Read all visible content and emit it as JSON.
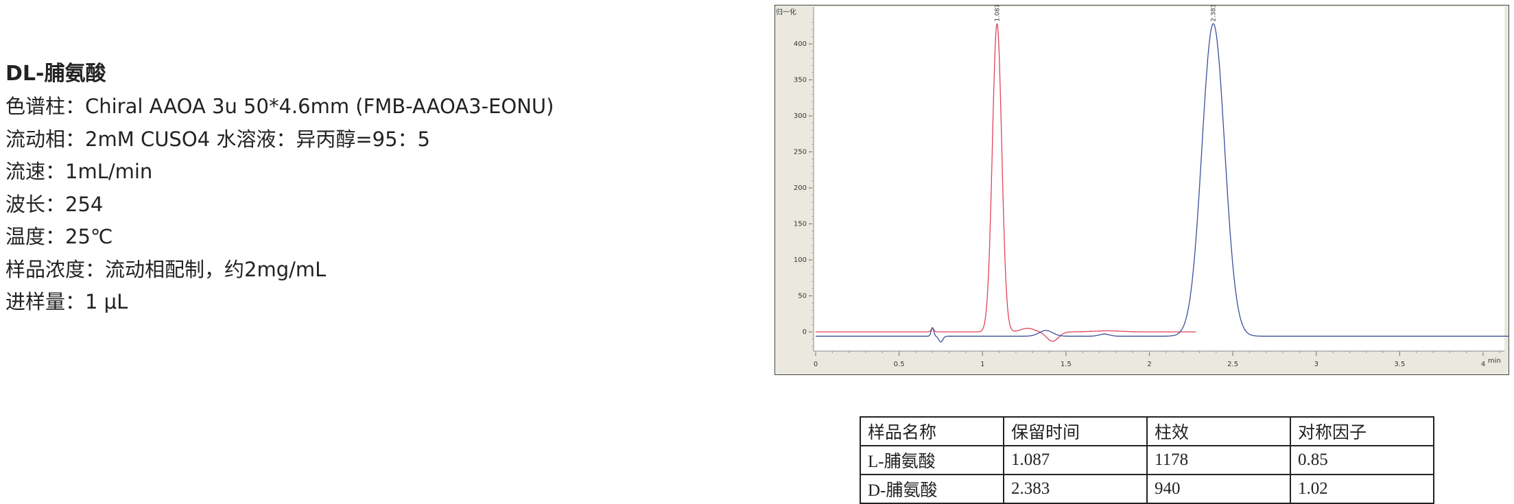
{
  "info": {
    "title": "DL-脯氨酸",
    "lines": [
      "色谱柱：Chiral AAOA 3u 50*4.6mm (FMB-AAOA3-EONU)",
      "流动相：2mM CUSO4 水溶液：异丙醇=95：5",
      "流速：1mL/min",
      "波长：254",
      "温度：25℃",
      "样品浓度：流动相配制，约2mg/mL",
      "进样量：1 μL"
    ]
  },
  "chart_data": {
    "type": "line",
    "ylabel": "归一化",
    "xlabel": "min",
    "xlim": [
      0,
      4.2
    ],
    "ylim": [
      -27,
      440
    ],
    "xticks": [
      "0",
      "0.5",
      "1",
      "1.5",
      "2",
      "2.5",
      "3",
      "3.5",
      "4"
    ],
    "yticks": [
      "0",
      "50",
      "100",
      "150",
      "200",
      "250",
      "300",
      "350",
      "400"
    ],
    "grid": false,
    "colors": {
      "red": "#e0405a",
      "blue": "#3a4f9a",
      "frame_bg": "#ebe9df"
    },
    "series": [
      {
        "color": "red",
        "x_range": [
          0,
          2.28
        ],
        "baseline": 0,
        "peak_label": "1.087",
        "peaks": [
          {
            "rt": 1.087,
            "height": 428,
            "sigma": 0.028
          },
          {
            "rt": 0.7,
            "height": 5,
            "sigma": 0.008
          },
          {
            "rt": 1.27,
            "height": 5,
            "sigma": 0.04
          },
          {
            "rt": 1.42,
            "height": -13,
            "sigma": 0.035
          },
          {
            "rt": 1.75,
            "height": 1.5,
            "sigma": 0.08
          }
        ]
      },
      {
        "color": "blue",
        "x_range": [
          0,
          4.2
        ],
        "baseline": -6,
        "peak_label": "2.383",
        "peaks": [
          {
            "rt": 2.383,
            "height": 434,
            "sigma": 0.068
          },
          {
            "rt": 0.7,
            "height": 12,
            "sigma": 0.008
          },
          {
            "rt": 0.75,
            "height": -8,
            "sigma": 0.012
          },
          {
            "rt": 1.38,
            "height": 8,
            "sigma": 0.04
          },
          {
            "rt": 1.73,
            "height": 3,
            "sigma": 0.03
          }
        ]
      }
    ]
  },
  "table": {
    "header": [
      "样品名称",
      "保留时间",
      "柱效",
      "对称因子"
    ],
    "rows": [
      [
        "L-脯氨酸",
        "1.087",
        "1178",
        "0.85"
      ],
      [
        "D-脯氨酸",
        "2.383",
        "940",
        "1.02"
      ]
    ]
  }
}
